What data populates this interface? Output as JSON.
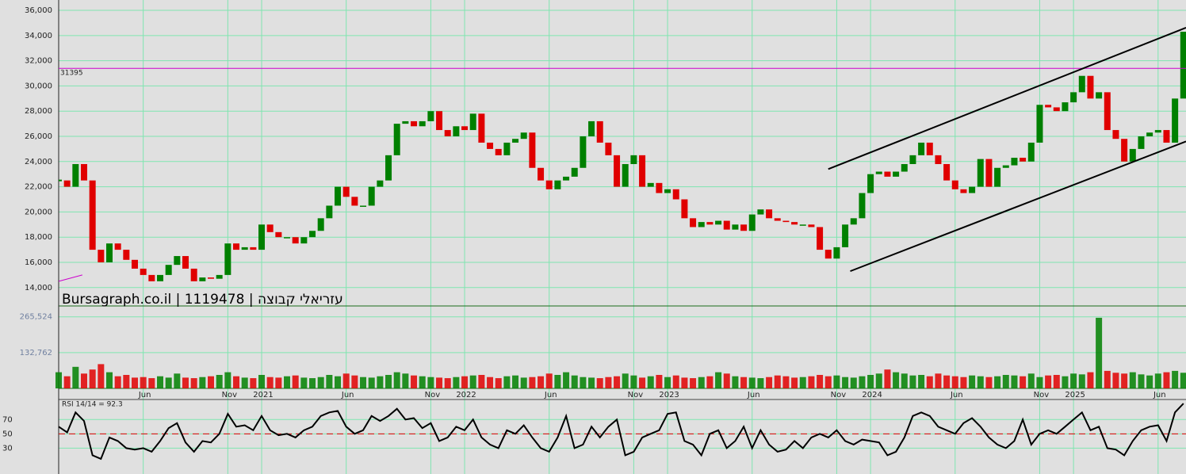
{
  "watermark": "Bursagraph.co.il | 1119478 | עזריאלי קבוצה",
  "chart_data": [
    {
      "type": "candlestick",
      "x": [
        0,
        0.5,
        1,
        1.5,
        2,
        2.5,
        3,
        3.5,
        4,
        4.5,
        5,
        5.5,
        6,
        6.5,
        7,
        7.5,
        8,
        8.5,
        9,
        9.5,
        10,
        10.5,
        11,
        11.5,
        12,
        12.5,
        13,
        13.5,
        14,
        14.5,
        15,
        15.5,
        16,
        16.5,
        17,
        17.5,
        18,
        18.5,
        19,
        19.5,
        20,
        20.5,
        21,
        21.5,
        22,
        22.5,
        23,
        23.5,
        24,
        24.5,
        25,
        25.5,
        26,
        26.5,
        27,
        27.5,
        28,
        28.5,
        29,
        29.5,
        30,
        30.5,
        31,
        31.5,
        32,
        32.5,
        33,
        33.5,
        34,
        34.5,
        35,
        35.5,
        36,
        36.5,
        37,
        37.5,
        38,
        38.5,
        39,
        39.5,
        40,
        40.5,
        41,
        41.5,
        42,
        42.5,
        43,
        43.5,
        44,
        44.5,
        45,
        45.5,
        46,
        46.5,
        47,
        47.5,
        48,
        48.5,
        49,
        49.5,
        50,
        50.5,
        51,
        51.5,
        52,
        52.5,
        53,
        53.5,
        54,
        54.5,
        55,
        55.5,
        56,
        56.5,
        57,
        57.5,
        58,
        58.5,
        59,
        59.5,
        60,
        60.5,
        61,
        61.5,
        62,
        62.5,
        63,
        63.5,
        64,
        64.5,
        65,
        65.5,
        66,
        66.5
      ],
      "values": [
        22500,
        22000,
        23800,
        22500,
        17000,
        16000,
        17500,
        17000,
        16200,
        15500,
        15000,
        14500,
        15000,
        15800,
        16500,
        15500,
        14500,
        14800,
        14700,
        15000,
        17500,
        17000,
        17200,
        17000,
        19000,
        18400,
        18000,
        18000,
        17500,
        18000,
        18500,
        19500,
        20500,
        22000,
        21200,
        20500,
        20500,
        22000,
        22500,
        24500,
        27000,
        27200,
        26800,
        27200,
        28000,
        26500,
        26000,
        26800,
        26500,
        27800,
        25500,
        25000,
        24500,
        25500,
        25800,
        26300,
        23500,
        22500,
        21800,
        22500,
        22800,
        23500,
        26000,
        27200,
        25500,
        24500,
        22000,
        23800,
        24500,
        22000,
        22300,
        21500,
        21800,
        21000,
        19500,
        18800,
        19200,
        19000,
        19300,
        18600,
        19000,
        18500,
        19800,
        20200,
        19500,
        19300,
        19200,
        19000,
        19000,
        18800,
        17000,
        16300,
        17200,
        19000,
        19500,
        21500,
        23000,
        23200,
        22800,
        23200,
        23800,
        24500,
        25500,
        24500,
        23800,
        22500,
        21800,
        21500,
        22000,
        24200,
        22000,
        23500,
        23700,
        24300,
        24000,
        25500,
        28500,
        28300,
        28000,
        28700,
        29500,
        30800,
        29000,
        29500,
        26500,
        25800,
        24000,
        25000,
        26000,
        26300,
        26500,
        25500,
        29000,
        34300
      ],
      "up_color": "#008000",
      "down_color": "#e00000",
      "xlim": [
        0,
        66.65
      ],
      "ylim": [
        12540,
        36820
      ],
      "yticks": [
        {
          "value": 14000,
          "label": "14,000"
        },
        {
          "value": 16000,
          "label": "16,000"
        },
        {
          "value": 18000,
          "label": "18,000"
        },
        {
          "value": 20000,
          "label": "20,000"
        },
        {
          "value": 22000,
          "label": "22,000"
        },
        {
          "value": 24000,
          "label": "24,000"
        },
        {
          "value": 26000,
          "label": "26,000"
        },
        {
          "value": 28000,
          "label": "28,000"
        },
        {
          "value": 30000,
          "label": "30,000"
        },
        {
          "value": 32000,
          "label": "32,000"
        },
        {
          "value": 34000,
          "label": "34,000"
        },
        {
          "value": 36000,
          "label": "36,000"
        }
      ],
      "xticks": [
        {
          "value": 5,
          "label": "Jun"
        },
        {
          "value": 10,
          "label": "Nov"
        },
        {
          "value": 12,
          "label": "2021"
        },
        {
          "value": 17,
          "label": "Jun"
        },
        {
          "value": 22,
          "label": "Nov"
        },
        {
          "value": 24,
          "label": "2022"
        },
        {
          "value": 29,
          "label": "Jun"
        },
        {
          "value": 34,
          "label": "Nov"
        },
        {
          "value": 36,
          "label": "2023"
        },
        {
          "value": 41,
          "label": "Jun"
        },
        {
          "value": 46,
          "label": "Nov"
        },
        {
          "value": 48,
          "label": "2024"
        },
        {
          "value": 53,
          "label": "Jun"
        },
        {
          "value": 58,
          "label": "Nov"
        },
        {
          "value": 60,
          "label": "2025"
        },
        {
          "value": 65,
          "label": "Jun"
        }
      ],
      "grid": true,
      "hline": {
        "value": 31395,
        "color": "#cc00cc"
      },
      "trendlines": [
        {
          "x": [
            45.5,
            66.65
          ],
          "y": [
            23400,
            34620
          ],
          "color": "#000000"
        },
        {
          "x": [
            46.8,
            66.65
          ],
          "y": [
            15300,
            25600
          ],
          "color": "#000000"
        },
        {
          "x": [
            0,
            1.4
          ],
          "y": [
            14500,
            15000
          ],
          "color": "#cc00cc"
        }
      ]
    },
    {
      "type": "bar",
      "values": [
        60000,
        45000,
        80000,
        55000,
        70000,
        90000,
        60000,
        45000,
        50000,
        40000,
        42000,
        38000,
        45000,
        40000,
        55000,
        40000,
        38000,
        42000,
        45000,
        50000,
        60000,
        45000,
        40000,
        38000,
        50000,
        42000,
        40000,
        45000,
        48000,
        40000,
        38000,
        42000,
        50000,
        45000,
        55000,
        48000,
        42000,
        40000,
        45000,
        50000,
        60000,
        55000,
        48000,
        45000,
        42000,
        40000,
        38000,
        42000,
        45000,
        48000,
        50000,
        42000,
        38000,
        45000,
        48000,
        40000,
        42000,
        45000,
        55000,
        50000,
        60000,
        48000,
        42000,
        40000,
        38000,
        42000,
        45000,
        55000,
        48000,
        40000,
        45000,
        50000,
        42000,
        48000,
        40000,
        38000,
        42000,
        45000,
        60000,
        55000,
        45000,
        42000,
        40000,
        38000,
        42000,
        48000,
        45000,
        40000,
        42000,
        45000,
        50000,
        45000,
        48000,
        42000,
        40000,
        45000,
        50000,
        55000,
        70000,
        60000,
        55000,
        48000,
        50000,
        45000,
        55000,
        48000,
        45000,
        42000,
        48000,
        45000,
        42000,
        45000,
        50000,
        48000,
        45000,
        55000,
        42000,
        48000,
        50000,
        45000,
        55000,
        52000,
        60000,
        262000,
        65000,
        58000,
        55000,
        60000,
        52000,
        48000,
        55000,
        60000,
        65000,
        58000
      ],
      "ylim": [
        0,
        300000
      ],
      "yticks": [
        {
          "value": 132762,
          "label": "132,762"
        },
        {
          "value": 265524,
          "label": "265,524"
        }
      ]
    },
    {
      "type": "line",
      "label": "RSI 14/14 = 92.3",
      "values": [
        60,
        52,
        80,
        68,
        20,
        15,
        45,
        40,
        30,
        28,
        30,
        25,
        40,
        58,
        65,
        38,
        25,
        40,
        38,
        50,
        78,
        60,
        62,
        55,
        75,
        55,
        48,
        50,
        45,
        55,
        60,
        75,
        80,
        82,
        60,
        50,
        55,
        75,
        68,
        75,
        85,
        70,
        72,
        58,
        65,
        40,
        45,
        60,
        55,
        70,
        45,
        35,
        30,
        55,
        50,
        62,
        45,
        30,
        25,
        45,
        75,
        30,
        35,
        60,
        45,
        60,
        70,
        20,
        25,
        45,
        50,
        55,
        78,
        80,
        40,
        35,
        20,
        50,
        55,
        30,
        40,
        60,
        30,
        55,
        35,
        25,
        28,
        40,
        30,
        45,
        50,
        45,
        55,
        40,
        35,
        42,
        40,
        38,
        20,
        25,
        45,
        75,
        80,
        75,
        60,
        55,
        50,
        65,
        72,
        60,
        45,
        35,
        30,
        40,
        70,
        35,
        50,
        55,
        50,
        60,
        70,
        80,
        55,
        60,
        30,
        28,
        20,
        40,
        55,
        60,
        62,
        40,
        80,
        92.3
      ],
      "color": "#000000",
      "ylim": [
        -5,
        98
      ],
      "yticks": [
        30,
        50,
        70
      ],
      "reference": {
        "value": 50,
        "color": "#e00000"
      }
    }
  ]
}
